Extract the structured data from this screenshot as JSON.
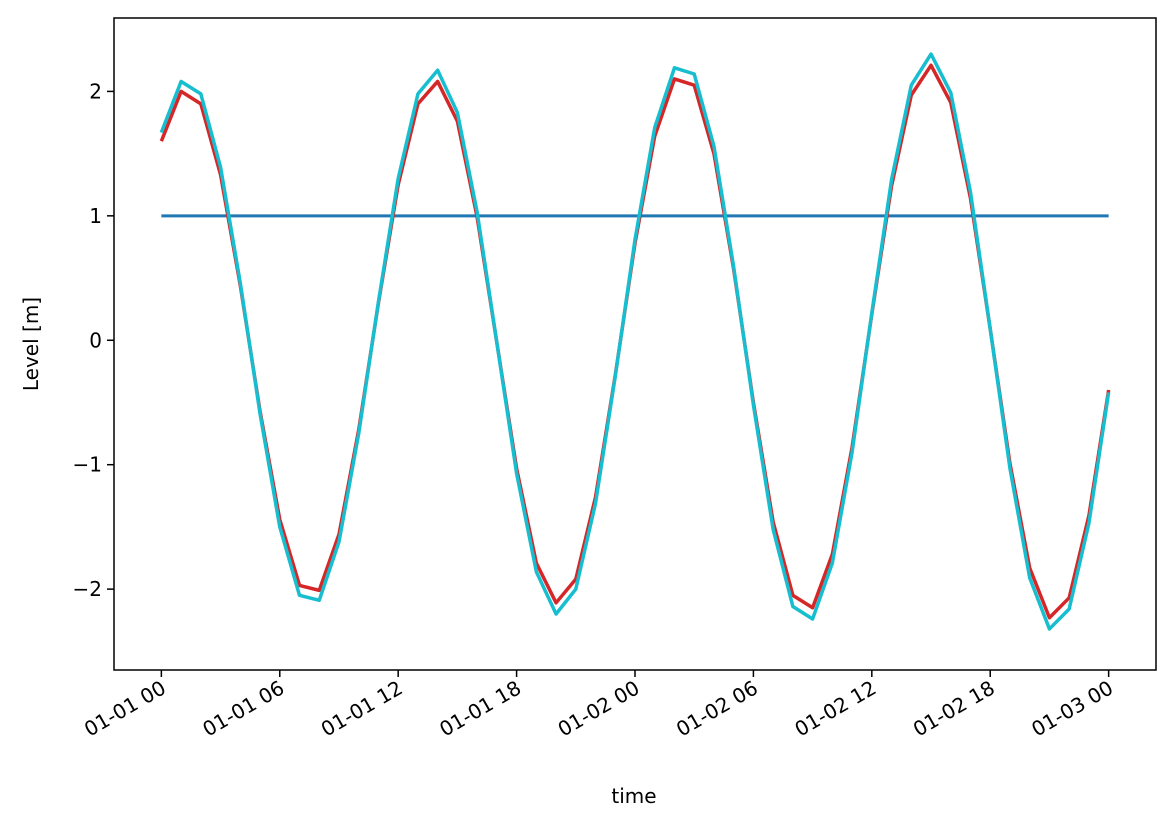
{
  "chart_data": {
    "type": "line",
    "xlabel": "time",
    "ylabel": "Level [m]",
    "x": [
      0,
      1,
      2,
      3,
      4,
      5,
      6,
      7,
      8,
      9,
      10,
      11,
      12,
      13,
      14,
      15,
      16,
      17,
      18,
      19,
      20,
      21,
      22,
      23,
      24,
      25,
      26,
      27,
      28,
      29,
      30,
      31,
      32,
      33,
      34,
      35,
      36,
      37,
      38,
      39,
      40,
      41,
      42,
      43,
      44,
      45,
      46,
      47,
      48
    ],
    "series": [
      {
        "color": "#1f77b4",
        "values": [
          1,
          1,
          1,
          1,
          1,
          1,
          1,
          1,
          1,
          1,
          1,
          1,
          1,
          1,
          1,
          1,
          1,
          1,
          1,
          1,
          1,
          1,
          1,
          1,
          1,
          1,
          1,
          1,
          1,
          1,
          1,
          1,
          1,
          1,
          1,
          1,
          1,
          1,
          1,
          1,
          1,
          1,
          1,
          1,
          1,
          1,
          1,
          1,
          1
        ]
      },
      {
        "color": "#d62728",
        "values": [
          1.6,
          2.0,
          1.9,
          1.33,
          0.44,
          -0.57,
          -1.44,
          -1.97,
          -2.01,
          -1.56,
          -0.72,
          0.3,
          1.25,
          1.9,
          2.08,
          1.76,
          0.99,
          -0.02,
          -1.03,
          -1.79,
          -2.11,
          -1.92,
          -1.26,
          -0.28,
          0.78,
          1.64,
          2.1,
          2.05,
          1.5,
          0.57,
          -0.5,
          -1.46,
          -2.05,
          -2.15,
          -1.72,
          -0.86,
          0.21,
          1.24,
          1.97,
          2.21,
          1.91,
          1.14,
          0.09,
          -0.99,
          -1.83,
          -2.23,
          -2.07,
          -1.41,
          -0.4
        ]
      },
      {
        "color": "#17becf",
        "values": [
          1.67,
          2.08,
          1.98,
          1.39,
          0.46,
          -0.59,
          -1.5,
          -2.05,
          -2.09,
          -1.62,
          -0.75,
          0.31,
          1.3,
          1.98,
          2.17,
          1.83,
          1.03,
          -0.02,
          -1.07,
          -1.86,
          -2.2,
          -2.0,
          -1.31,
          -0.29,
          0.81,
          1.71,
          2.19,
          2.14,
          1.56,
          0.59,
          -0.52,
          -1.52,
          -2.14,
          -2.24,
          -1.79,
          -0.9,
          0.22,
          1.29,
          2.05,
          2.3,
          1.99,
          1.19,
          0.09,
          -1.03,
          -1.91,
          -2.32,
          -2.16,
          -1.47,
          -0.42
        ]
      }
    ],
    "xlim": [
      -2.4,
      50.4
    ],
    "xticks": [
      {
        "value": 0,
        "label": "01-01 00"
      },
      {
        "value": 6,
        "label": "01-01 06"
      },
      {
        "value": 12,
        "label": "01-01 12"
      },
      {
        "value": 18,
        "label": "01-01 18"
      },
      {
        "value": 24,
        "label": "01-02 00"
      },
      {
        "value": 30,
        "label": "01-02 06"
      },
      {
        "value": 36,
        "label": "01-02 12"
      },
      {
        "value": 42,
        "label": "01-02 18"
      },
      {
        "value": 48,
        "label": "01-03 00"
      }
    ],
    "ylim": [
      -2.65,
      2.59
    ],
    "yticks": [
      {
        "value": -2,
        "label": "−2"
      },
      {
        "value": -1,
        "label": "−1"
      },
      0,
      1,
      2
    ]
  }
}
